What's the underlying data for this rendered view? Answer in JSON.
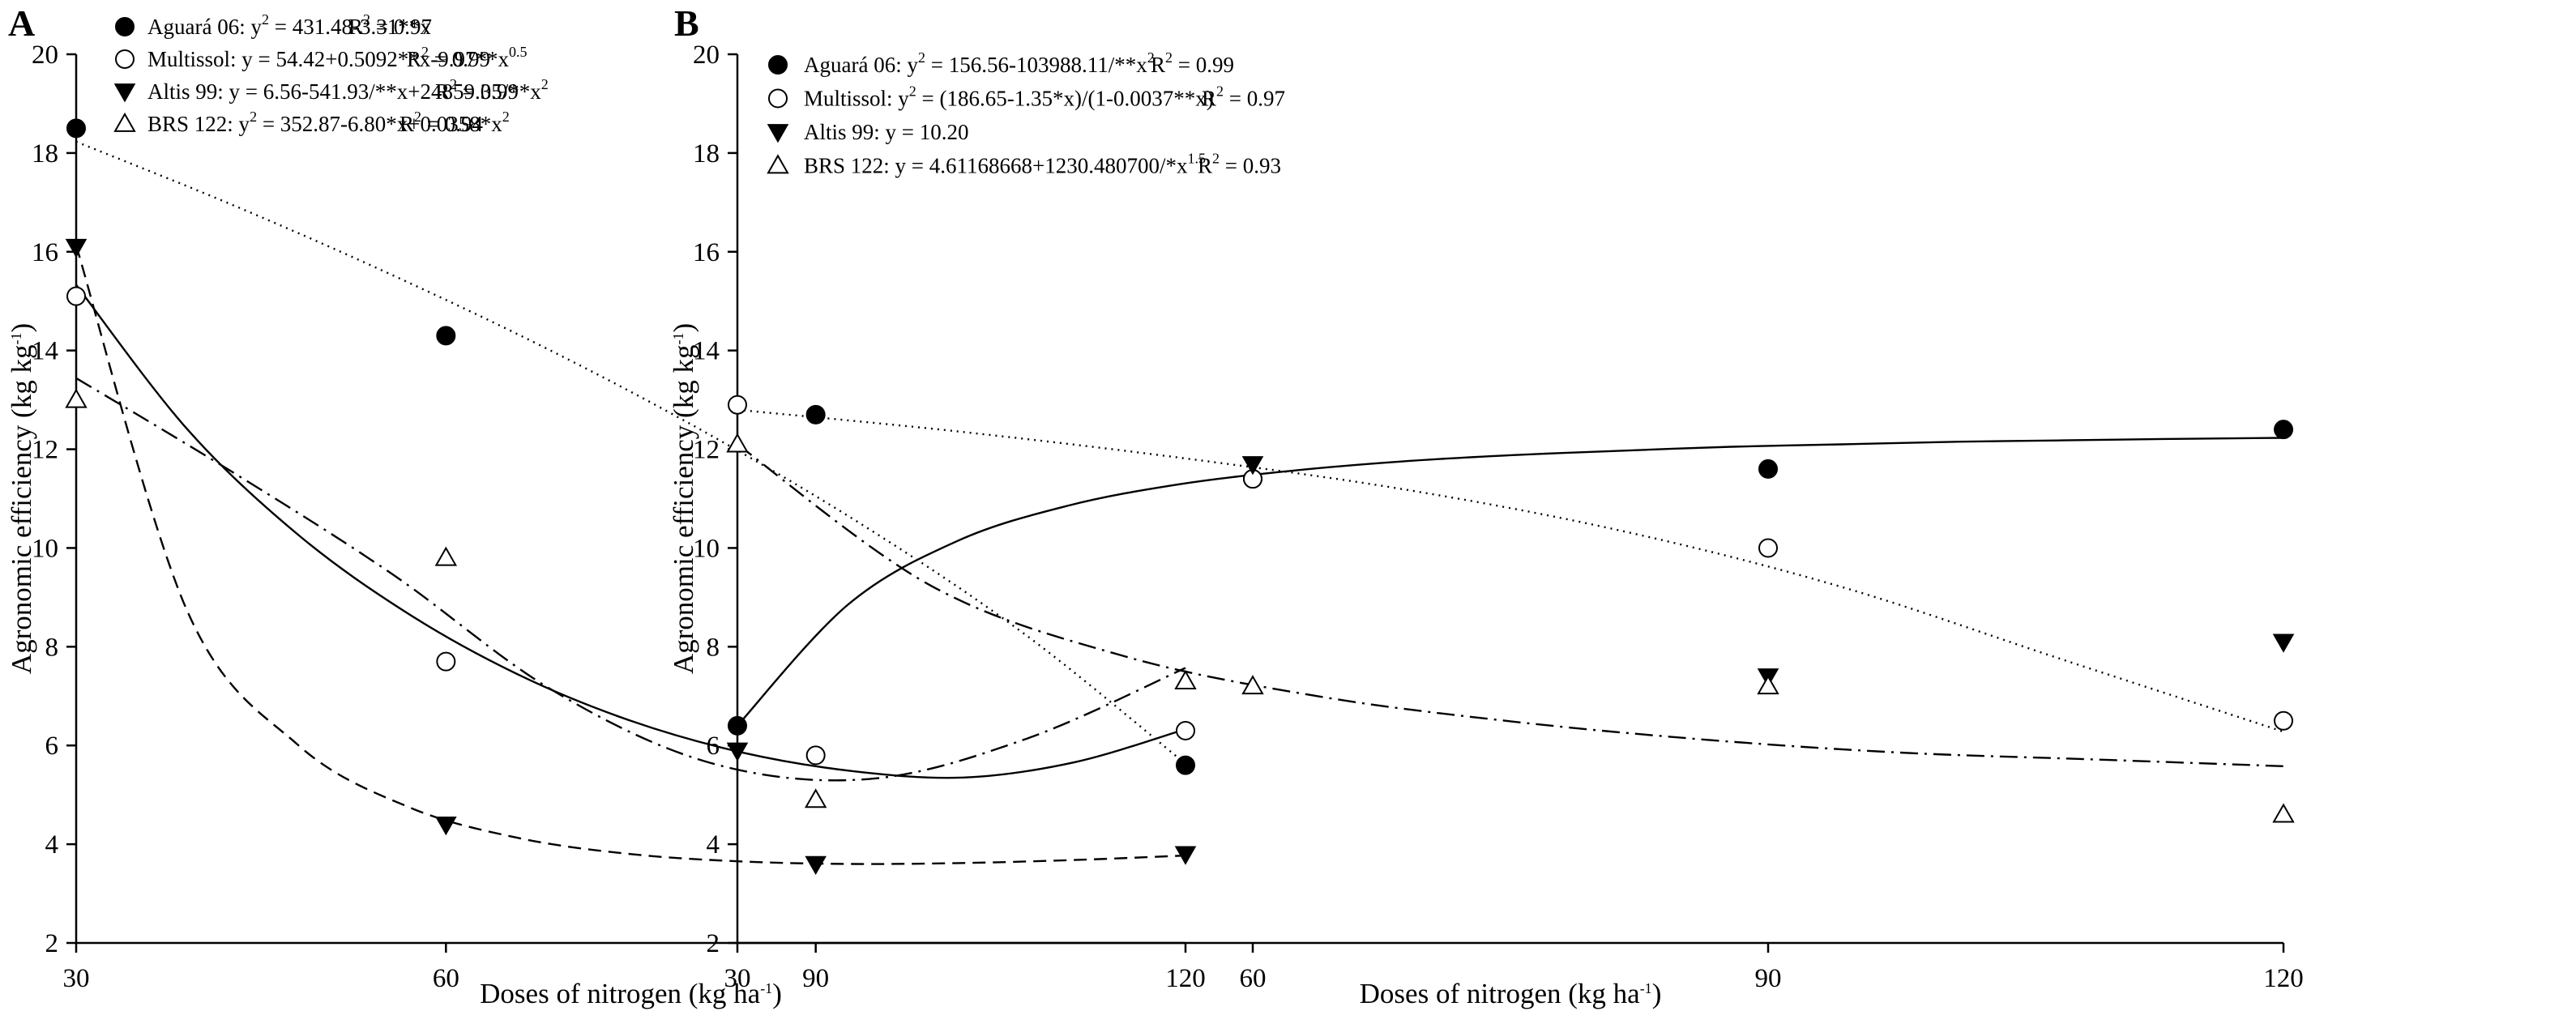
{
  "chart_data": [
    {
      "type": "scatter",
      "panel": "A",
      "xlabel": "Doses of nitrogen",
      "xlabel_unit": "(kg ha",
      "xlabel_unit_sup": "-1",
      "xlabel_unit_close": ")",
      "ylabel": "Agronomic efficiency",
      "ylabel_unit": "(kg kg",
      "ylabel_unit_sup": "-1",
      "ylabel_unit_close": ")",
      "xlim": [
        30,
        120
      ],
      "ylim": [
        2,
        20
      ],
      "x_ticks": [
        30,
        60,
        90,
        120
      ],
      "y_ticks": [
        2,
        4,
        6,
        8,
        10,
        12,
        14,
        16,
        18,
        20
      ],
      "x": [
        30,
        60,
        90,
        120
      ],
      "series": [
        {
          "name": "Aguará 06",
          "marker": "filled-circle",
          "line": "dotted",
          "values": [
            18.5,
            14.3,
            12.7,
            5.6
          ],
          "equation_parts": [
            ": y",
            "2",
            " = 431.48-3.31**x"
          ],
          "r2": "= 0.97",
          "fit": [
            18.23,
            16.93,
            15.52,
            13.99,
            12.29,
            10.39,
            8.22,
            5.63
          ]
        },
        {
          "name": "Multissol",
          "marker": "open-circle",
          "line": "solid",
          "values": [
            15.1,
            7.7,
            5.8,
            6.3
          ],
          "equation_parts": [
            ": y = 54.42+0.5092**x-9.97**x",
            "0.5",
            ""
          ],
          "r2": "= 0.99",
          "fit": [
            15.33,
            12.41,
            10.27,
            8.66,
            7.42,
            6.5,
            5.86,
            5.48,
            5.35,
            5.66,
            6.33
          ]
        },
        {
          "name": "Altis 99",
          "marker": "filled-triangle-down",
          "line": "dashed",
          "values": [
            16.1,
            4.4,
            3.6,
            3.8
          ],
          "equation_parts": [
            ": y = 6.56-541.93/**x+24859.35/**x",
            "2",
            ""
          ],
          "r2": "= 0.99",
          "fit": [
            16.13,
            8.73,
            6.01,
            4.75,
            4.12,
            3.8,
            3.65,
            3.6,
            3.62,
            3.68,
            3.77
          ]
        },
        {
          "name": "BRS 122",
          "marker": "open-triangle-up",
          "line": "dash-dot",
          "values": [
            13.0,
            9.8,
            4.9,
            7.3
          ],
          "equation_parts": [
            ": y",
            "2",
            " = 352.87-6.80*x+0.0358*x"
          ],
          "equation_end_sup": "2",
          "r2": "= 0.94",
          "fit": [
            13.44,
            11.51,
            9.46,
            7.13,
            5.65,
            5.32,
            6.14,
            7.57
          ]
        }
      ]
    },
    {
      "type": "scatter",
      "panel": "B",
      "xlabel": "Doses of nitrogen",
      "xlabel_unit": "(kg ha",
      "xlabel_unit_sup": "-1",
      "xlabel_unit_close": ")",
      "ylabel": "Agronomic efficiency",
      "ylabel_unit": "(kg kg",
      "ylabel_unit_sup": "-1",
      "ylabel_unit_close": ")",
      "xlim": [
        30,
        120
      ],
      "ylim": [
        2,
        20
      ],
      "x_ticks": [
        30,
        60,
        90,
        120
      ],
      "y_ticks": [
        2,
        4,
        6,
        8,
        10,
        12,
        14,
        16,
        18,
        20
      ],
      "x": [
        30,
        60,
        90,
        120
      ],
      "series": [
        {
          "name": "Aguará 06",
          "marker": "filled-circle",
          "line": "solid",
          "values": [
            6.4,
            11.4,
            11.6,
            12.4
          ],
          "equation_parts": [
            ": y",
            "2",
            " = 156.56-103988.11/**x"
          ],
          "equation_end_sup": "2",
          "r2": "= 0.99",
          "fit": [
            6.4,
            8.85,
            10.15,
            10.86,
            11.29,
            11.56,
            11.75,
            11.88,
            11.97,
            12.05,
            12.1,
            12.15,
            12.18,
            12.21,
            12.23
          ]
        },
        {
          "name": "Multissol",
          "marker": "open-circle",
          "line": "dotted",
          "values": [
            12.9,
            11.4,
            10.0,
            6.5
          ],
          "equation_parts": [
            ": y",
            "2",
            " = (186.65-1.35*x)/(1-0.0037**x)"
          ],
          "r2": "= 0.97",
          "fit": [
            12.8,
            12.36,
            11.83,
            11.2,
            10.35,
            9.21,
            7.74,
            6.28
          ]
        },
        {
          "name": "Altis 99",
          "marker": "filled-triangle-down",
          "line": "none",
          "values": [
            5.9,
            11.7,
            7.4,
            8.1
          ],
          "equation_parts": [
            ": y      = 10.20",
            "",
            ""
          ],
          "r2": ""
        },
        {
          "name": "BRS 122",
          "marker": "open-triangle-up",
          "line": "dash-dot",
          "values": [
            12.1,
            7.2,
            7.2,
            4.6
          ],
          "equation_parts": [
            ": y = 4.61168668+1230.480700/*x",
            "1.5",
            ""
          ],
          "r2": "= 0.93",
          "fit": [
            12.1,
            9.24,
            7.81,
            7.0,
            6.49,
            6.12,
            5.86,
            5.72,
            5.58
          ]
        }
      ]
    }
  ]
}
